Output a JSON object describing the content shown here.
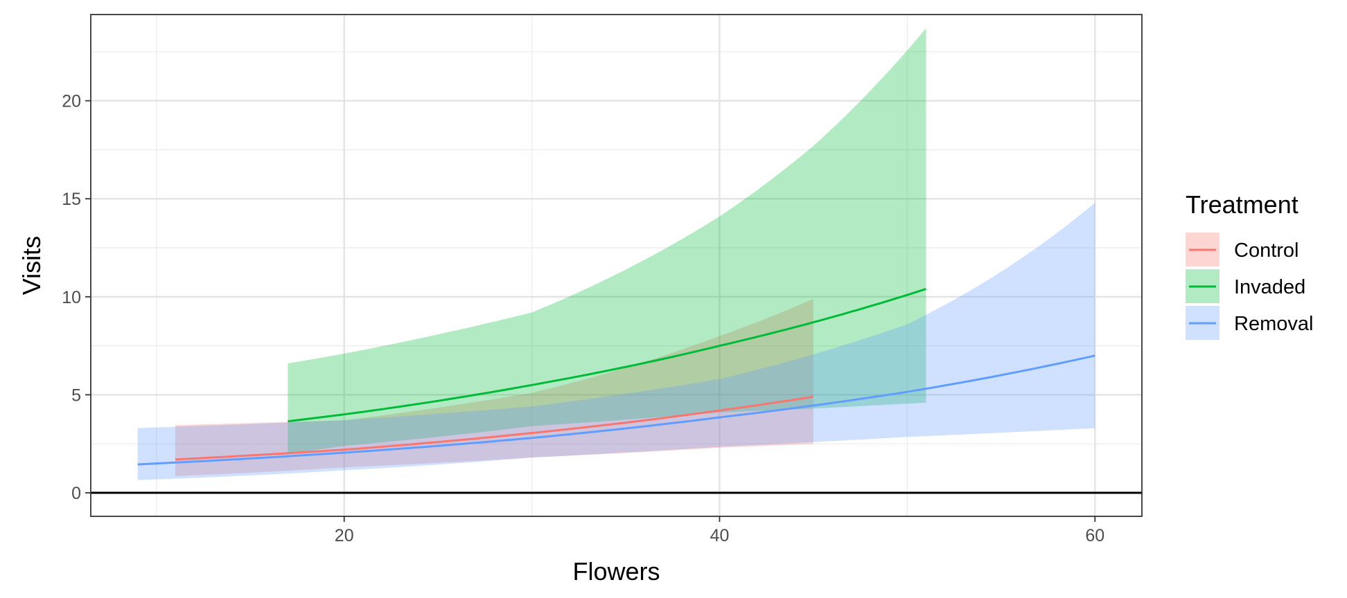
{
  "chart_data": {
    "type": "line",
    "xlabel": "Flowers",
    "ylabel": "Visits",
    "xlim": [
      6.5,
      62.5
    ],
    "ylim": [
      -1.2,
      24.4
    ],
    "x_ticks": [
      20,
      40,
      60
    ],
    "y_ticks": [
      0,
      5,
      10,
      15,
      20
    ],
    "x_tick_labels": [
      "20",
      "40",
      "60"
    ],
    "y_tick_labels": [
      "0",
      "5",
      "10",
      "15",
      "20"
    ],
    "grid": true,
    "hline_y": 0,
    "legend": {
      "title": "Treatment",
      "position": "right"
    },
    "series": [
      {
        "name": "Control",
        "color": "#F8766D",
        "x": [
          11,
          20,
          30,
          40,
          45
        ],
        "y": [
          1.7,
          2.2,
          3.05,
          4.2,
          4.9
        ],
        "lower": [
          0.85,
          1.3,
          1.8,
          2.3,
          2.5
        ],
        "upper": [
          3.45,
          3.7,
          5.1,
          8.0,
          9.9
        ]
      },
      {
        "name": "Invaded",
        "color": "#00BA38",
        "x": [
          17,
          20,
          30,
          40,
          45,
          51
        ],
        "y": [
          3.65,
          4.0,
          5.5,
          7.5,
          8.7,
          10.4
        ],
        "lower": [
          2.0,
          2.4,
          3.4,
          4.1,
          4.3,
          4.6
        ],
        "upper": [
          6.6,
          7.1,
          9.2,
          14.1,
          17.7,
          23.7
        ]
      },
      {
        "name": "Removal",
        "color": "#619CFF",
        "x": [
          9,
          20,
          30,
          40,
          50,
          60
        ],
        "y": [
          1.45,
          2.05,
          2.8,
          3.85,
          5.15,
          7.0
        ],
        "lower": [
          0.65,
          1.15,
          1.8,
          2.35,
          2.85,
          3.3
        ],
        "upper": [
          3.3,
          3.7,
          4.4,
          5.8,
          8.6,
          14.8
        ]
      }
    ]
  }
}
